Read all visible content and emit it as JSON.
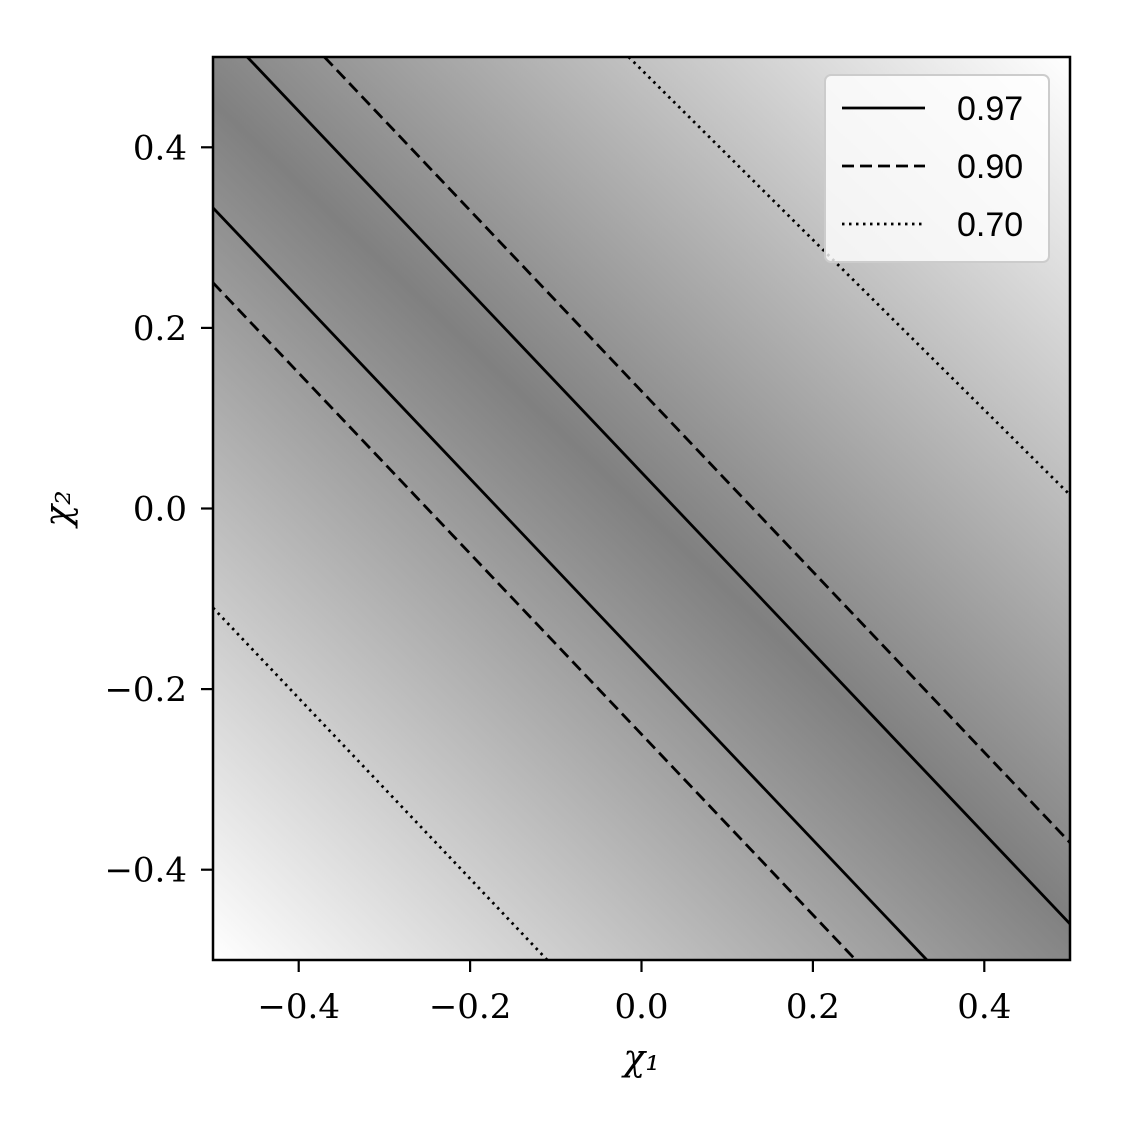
{
  "chart_data": {
    "type": "heatmap",
    "title": "",
    "xlabel": "χ₁",
    "ylabel": "χ₂",
    "xlim": [
      -0.5,
      0.5
    ],
    "ylim": [
      -0.5,
      0.5
    ],
    "xticks": [
      {
        "value": -0.4,
        "label": "−0.4"
      },
      {
        "value": -0.2,
        "label": "−0.2"
      },
      {
        "value": 0.0,
        "label": "0.0"
      },
      {
        "value": 0.2,
        "label": "0.2"
      },
      {
        "value": 0.4,
        "label": "0.4"
      }
    ],
    "yticks": [
      {
        "value": -0.4,
        "label": "−0.4"
      },
      {
        "value": -0.2,
        "label": "−0.2"
      },
      {
        "value": 0.0,
        "label": "0.0"
      },
      {
        "value": 0.2,
        "label": "0.2"
      },
      {
        "value": 0.4,
        "label": "0.4"
      }
    ],
    "colormap": "grayscale",
    "colors": {
      "max": "#808080",
      "min": "#ffffff"
    },
    "field": {
      "ridge": "χ₁ + χ₂ = 0",
      "max_at_ridge": 1.0
    },
    "contours": [
      {
        "level": "0.97",
        "style": "solid",
        "lines": [
          [
            [
              -0.46,
              0.5
            ],
            [
              0.5,
              -0.46
            ]
          ],
          [
            [
              -0.5,
              0.333
            ],
            [
              0.333,
              -0.5
            ]
          ]
        ]
      },
      {
        "level": "0.90",
        "style": "dashed",
        "lines": [
          [
            [
              -0.37,
              0.5
            ],
            [
              0.5,
              -0.37
            ]
          ],
          [
            [
              -0.5,
              0.25
            ],
            [
              0.25,
              -0.5
            ]
          ]
        ]
      },
      {
        "level": "0.70",
        "style": "dotted",
        "lines": [
          [
            [
              -0.015,
              0.5
            ],
            [
              0.5,
              0.015
            ]
          ],
          [
            [
              -0.5,
              -0.11
            ],
            [
              -0.11,
              -0.5
            ]
          ]
        ]
      }
    ],
    "legend": {
      "position": "upper right",
      "entries": [
        {
          "label": "0.97",
          "style": "solid"
        },
        {
          "label": "0.90",
          "style": "dashed"
        },
        {
          "label": "0.70",
          "style": "dotted"
        }
      ]
    }
  }
}
